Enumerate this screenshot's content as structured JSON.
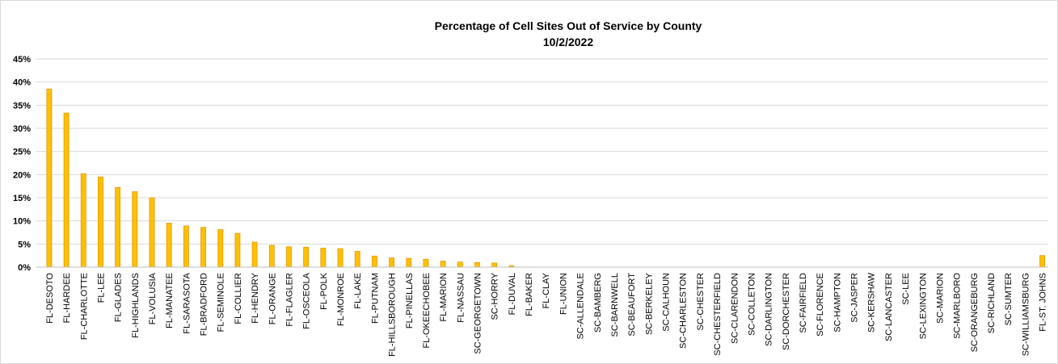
{
  "chart_data": {
    "type": "bar",
    "title": "Percentage of Cell Sites Out of Service by County",
    "subtitle": "10/2/2022",
    "xlabel": "",
    "ylabel": "",
    "ylim": [
      0,
      45
    ],
    "y_ticks": [
      "0%",
      "5%",
      "10%",
      "15%",
      "20%",
      "25%",
      "30%",
      "35%",
      "40%",
      "45%"
    ],
    "grid": true,
    "bar_color": "#FFC000",
    "bar_edge_color": "#E69500",
    "categories": [
      "FL-DESOTO",
      "FL-HARDEE",
      "FL-CHARLOTTE",
      "FL-LEE",
      "FL-GLADES",
      "FL-HIGHLANDS",
      "FL-VOLUSIA",
      "FL-MANATEE",
      "FL-SARASOTA",
      "FL-BRADFORD",
      "FL-SEMINOLE",
      "FL-COLLIER",
      "FL-HENDRY",
      "FL-ORANGE",
      "FL-FLAGLER",
      "FL-OSCEOLA",
      "FL-POLK",
      "FL-MONROE",
      "FL-LAKE",
      "FL-PUTNAM",
      "FL-HILLSBOROUGH",
      "FL-PINELLAS",
      "FL-OKEECHOBEE",
      "FL-MARION",
      "FL-NASSAU",
      "SC-GEORGETOWN",
      "SC-HORRY",
      "FL-DUVAL",
      "FL-BAKER",
      "FL-CLAY",
      "FL-UNION",
      "SC-ALLENDALE",
      "SC-BAMBERG",
      "SC-BARNWELL",
      "SC-BEAUFORT",
      "SC-BERKELEY",
      "SC-CALHOUN",
      "SC-CHARLESTON",
      "SC-CHESTER",
      "SC-CHESTERFIELD",
      "SC-CLARENDON",
      "SC-COLLETON",
      "SC-DARLINGTON",
      "SC-DORCHESTER",
      "SC-FAIRFIELD",
      "SC-FLORENCE",
      "SC-HAMPTON",
      "SC-JASPER",
      "SC-KERSHAW",
      "SC-LANCASTER",
      "SC-LEE",
      "SC-LEXINGTON",
      "SC-MARION",
      "SC-MARLBORO",
      "SC-ORANGEBURG",
      "SC-RICHLAND",
      "SC-SUMTER",
      "SC-WILLIAMSBURG",
      "FL-ST. JOHNS"
    ],
    "values": [
      38.5,
      33.3,
      20.2,
      19.5,
      17.2,
      16.3,
      15.0,
      9.5,
      8.9,
      8.6,
      8.1,
      7.3,
      5.4,
      4.7,
      4.4,
      4.3,
      4.1,
      4.0,
      3.4,
      2.4,
      2.0,
      1.9,
      1.7,
      1.3,
      1.1,
      1.0,
      0.9,
      0.3,
      0,
      0,
      0,
      0,
      0,
      0,
      0,
      0,
      0,
      0,
      0,
      0,
      0,
      0,
      0,
      0,
      0,
      0,
      0,
      0,
      0,
      0,
      0,
      0,
      0,
      0,
      0,
      0,
      0,
      0,
      2.5
    ]
  }
}
